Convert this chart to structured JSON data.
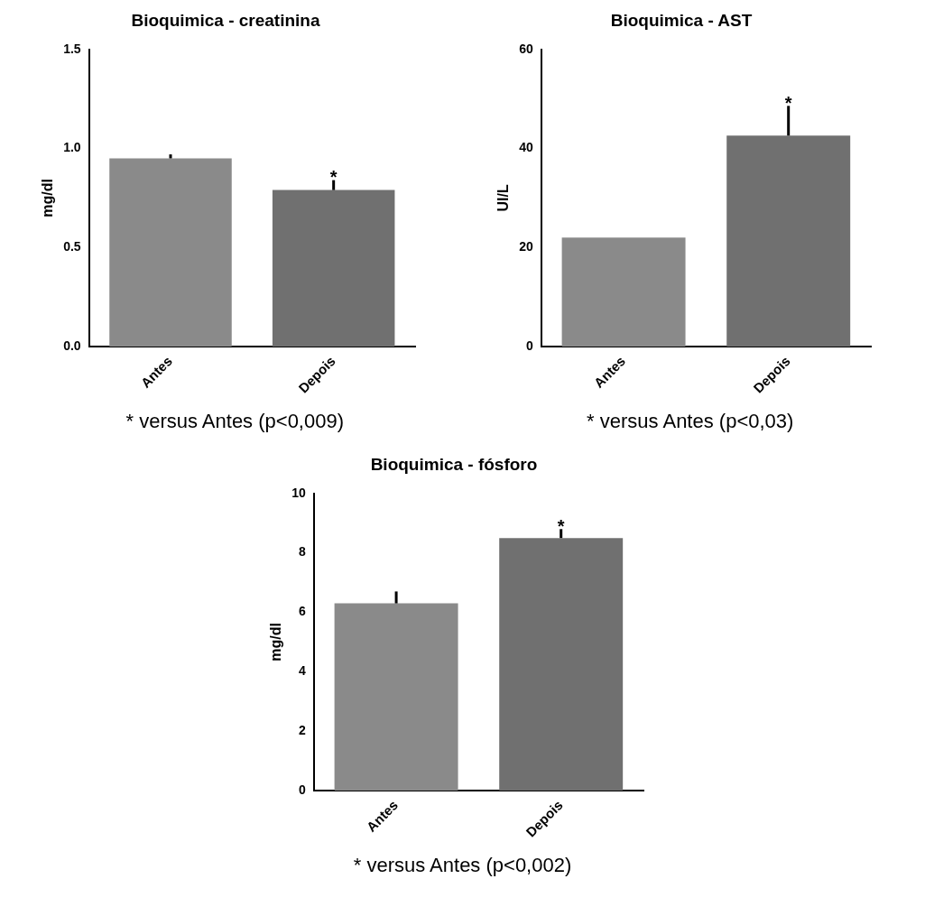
{
  "chart_data": [
    {
      "type": "bar",
      "title": "Bioquimica - creatinina",
      "ylabel": "mg/dl",
      "categories": [
        "Antes",
        "Depois"
      ],
      "values": [
        0.95,
        0.79
      ],
      "errors": [
        0.02,
        0.05
      ],
      "colors": [
        "#8a8a8a",
        "#707070"
      ],
      "ylim": [
        0,
        1.5
      ],
      "yticks": [
        {
          "value": 0,
          "label": "0.0"
        },
        {
          "value": 0.5,
          "label": "0.5"
        },
        {
          "value": 1,
          "label": "1.0"
        },
        {
          "value": 1.5,
          "label": "1.5"
        }
      ],
      "grid": false,
      "legend": false,
      "annotations": [
        {
          "text": "*",
          "x": "Depois",
          "y": 0.84
        },
        "* versus Antes (p<0,009)"
      ]
    },
    {
      "type": "bar",
      "title": "Bioquimica - AST",
      "ylabel": "UI/L",
      "categories": [
        "Antes",
        "Depois"
      ],
      "values": [
        22,
        42.6
      ],
      "errors": [
        null,
        6
      ],
      "colors": [
        "#8a8a8a",
        "#707070"
      ],
      "ylim": [
        0,
        60
      ],
      "yticks": [
        0,
        20,
        40,
        60
      ],
      "grid": false,
      "legend": false,
      "annotations": [
        {
          "text": "*",
          "x": "Depois",
          "y": 48.6
        },
        "* versus Antes (p<0,03)"
      ]
    },
    {
      "type": "bar",
      "title": "Bioquimica - fósforo",
      "ylabel": "mg/dl",
      "categories": [
        "Antes",
        "Depois"
      ],
      "values": [
        6.3,
        8.5
      ],
      "errors": [
        0.4,
        0.3
      ],
      "colors": [
        "#8a8a8a",
        "#707070"
      ],
      "ylim": [
        0,
        10
      ],
      "yticks": [
        0,
        2,
        4,
        6,
        8,
        10
      ],
      "grid": false,
      "legend": false,
      "annotations": [
        {
          "text": "*",
          "x": "Depois",
          "y": 8.8
        },
        "* versus Antes (p<0,002)"
      ]
    }
  ]
}
